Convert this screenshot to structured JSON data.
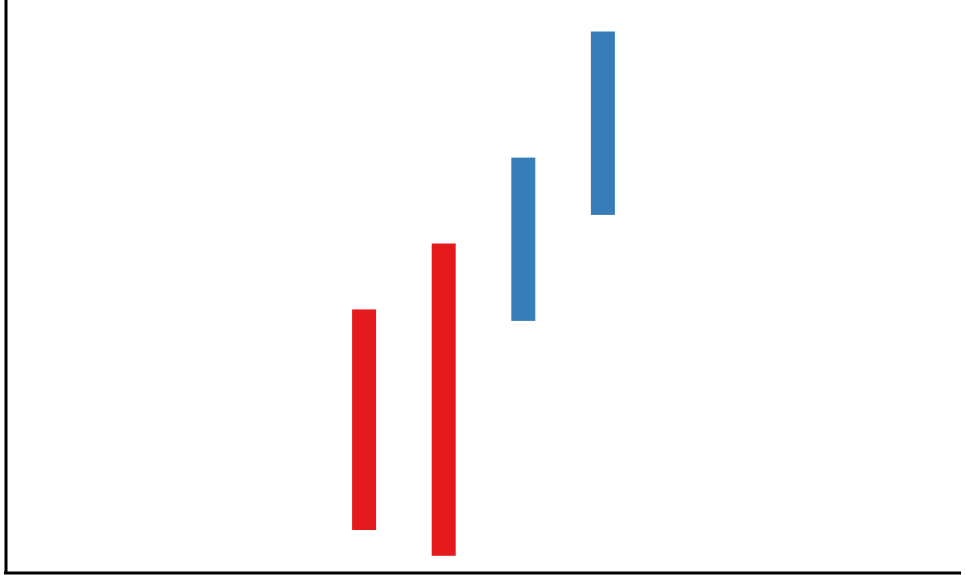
{
  "chart_data": {
    "type": "bar",
    "subtype": "floating-range",
    "title": "",
    "xlabel": "",
    "ylabel": "",
    "grid": false,
    "legend": "none",
    "xlim": [
      0,
      12
    ],
    "ylim": [
      0,
      100
    ],
    "x_tick_labels_shown": false,
    "y_tick_labels_shown": false,
    "series": [
      {
        "color": "#e41a1c",
        "bars": [
          {
            "x": 4.5,
            "low": 7.5,
            "high": 46
          },
          {
            "x": 5.5,
            "low": 3,
            "high": 57.5
          }
        ]
      },
      {
        "color": "#377eb8",
        "bars": [
          {
            "x": 6.5,
            "low": 44,
            "high": 72.5
          },
          {
            "x": 7.5,
            "low": 62.5,
            "high": 94.5
          }
        ]
      }
    ]
  }
}
